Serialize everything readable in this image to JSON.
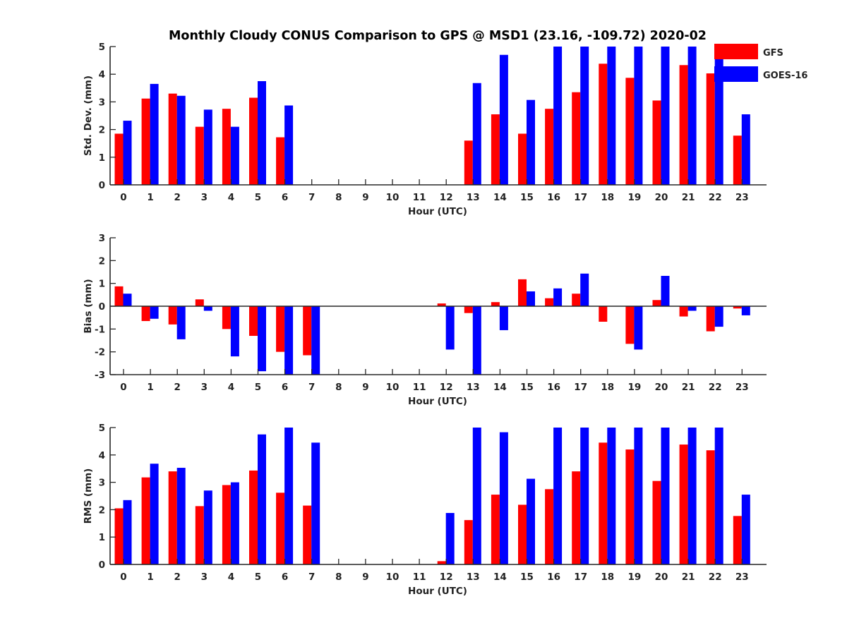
{
  "figure": {
    "title": "Monthly Cloudy CONUS Comparison to GPS @ MSD1 (23.16, -109.72) 2020-02"
  },
  "legend": {
    "placement": "top-right",
    "entries": [
      {
        "name": "GFS",
        "color": "#ff0000"
      },
      {
        "name": "GOES-16",
        "color": "#0000ff"
      }
    ]
  },
  "chart_data": [
    {
      "type": "bar",
      "title": "Monthly Cloudy CONUS Comparison to GPS @ MSD1 (23.16, -109.72) 2020-02",
      "xlabel": "Hour (UTC)",
      "ylabel": "Std. Dev. (mm)",
      "ylim": [
        0,
        5
      ],
      "yticks": [
        "0",
        "1",
        "2",
        "3",
        "4",
        "5"
      ],
      "categories": [
        "0",
        "1",
        "2",
        "3",
        "4",
        "5",
        "6",
        "7",
        "8",
        "9",
        "10",
        "11",
        "12",
        "13",
        "14",
        "15",
        "16",
        "17",
        "18",
        "19",
        "20",
        "21",
        "22",
        "23"
      ],
      "series": [
        {
          "name": "GFS",
          "color": "#ff0000",
          "values": [
            1.85,
            3.12,
            3.3,
            2.1,
            2.75,
            3.15,
            1.72,
            0,
            0,
            0,
            0,
            0,
            0,
            1.6,
            2.55,
            1.85,
            2.75,
            3.35,
            4.38,
            3.87,
            3.05,
            4.33,
            4.03,
            1.78
          ]
        },
        {
          "name": "GOES-16",
          "color": "#0000ff",
          "values": [
            2.32,
            3.65,
            3.22,
            2.72,
            2.1,
            3.75,
            2.87,
            0,
            0,
            0,
            0,
            0,
            0,
            3.68,
            4.7,
            3.07,
            5,
            5,
            5,
            5,
            5,
            5,
            5,
            2.55
          ]
        }
      ]
    },
    {
      "type": "bar",
      "xlabel": "Hour (UTC)",
      "ylabel": "Bias (mm)",
      "ylim": [
        -3,
        3
      ],
      "yticks": [
        "-3",
        "-2",
        "-1",
        "0",
        "1",
        "2",
        "3"
      ],
      "categories": [
        "0",
        "1",
        "2",
        "3",
        "4",
        "5",
        "6",
        "7",
        "8",
        "9",
        "10",
        "11",
        "12",
        "13",
        "14",
        "15",
        "16",
        "17",
        "18",
        "19",
        "20",
        "21",
        "22",
        "23"
      ],
      "series": [
        {
          "name": "GFS",
          "color": "#ff0000",
          "values": [
            0.87,
            -0.65,
            -0.8,
            0.3,
            -1.0,
            -1.3,
            -2.0,
            -2.15,
            0,
            0,
            0,
            0,
            0.12,
            -0.3,
            0.18,
            1.18,
            0.35,
            0.55,
            -0.68,
            -1.65,
            0.27,
            -0.45,
            -1.1,
            -0.1
          ]
        },
        {
          "name": "GOES-16",
          "color": "#0000ff",
          "values": [
            0.55,
            -0.55,
            -1.45,
            -0.2,
            -2.2,
            -2.85,
            -3,
            -3,
            0,
            0,
            0,
            0,
            -1.9,
            -3,
            -1.05,
            0.65,
            0.78,
            1.43,
            0,
            -1.9,
            1.33,
            -0.2,
            -0.9,
            -0.4
          ]
        }
      ]
    },
    {
      "type": "bar",
      "xlabel": "Hour (UTC)",
      "ylabel": "RMS (mm)",
      "ylim": [
        0,
        5
      ],
      "yticks": [
        "0",
        "1",
        "2",
        "3",
        "4",
        "5"
      ],
      "categories": [
        "0",
        "1",
        "2",
        "3",
        "4",
        "5",
        "6",
        "7",
        "8",
        "9",
        "10",
        "11",
        "12",
        "13",
        "14",
        "15",
        "16",
        "17",
        "18",
        "19",
        "20",
        "21",
        "22",
        "23"
      ],
      "series": [
        {
          "name": "GFS",
          "color": "#ff0000",
          "values": [
            2.05,
            3.18,
            3.4,
            2.13,
            2.9,
            3.43,
            2.62,
            2.15,
            0,
            0,
            0,
            0,
            0.12,
            1.62,
            2.55,
            2.18,
            2.75,
            3.4,
            4.45,
            4.2,
            3.05,
            4.38,
            4.17,
            1.77
          ]
        },
        {
          "name": "GOES-16",
          "color": "#0000ff",
          "values": [
            2.35,
            3.68,
            3.53,
            2.7,
            3.0,
            4.75,
            5,
            4.45,
            0,
            0,
            0,
            0,
            1.88,
            5,
            4.83,
            3.13,
            5,
            5,
            5,
            5,
            5,
            5,
            5,
            2.55
          ]
        }
      ]
    }
  ]
}
